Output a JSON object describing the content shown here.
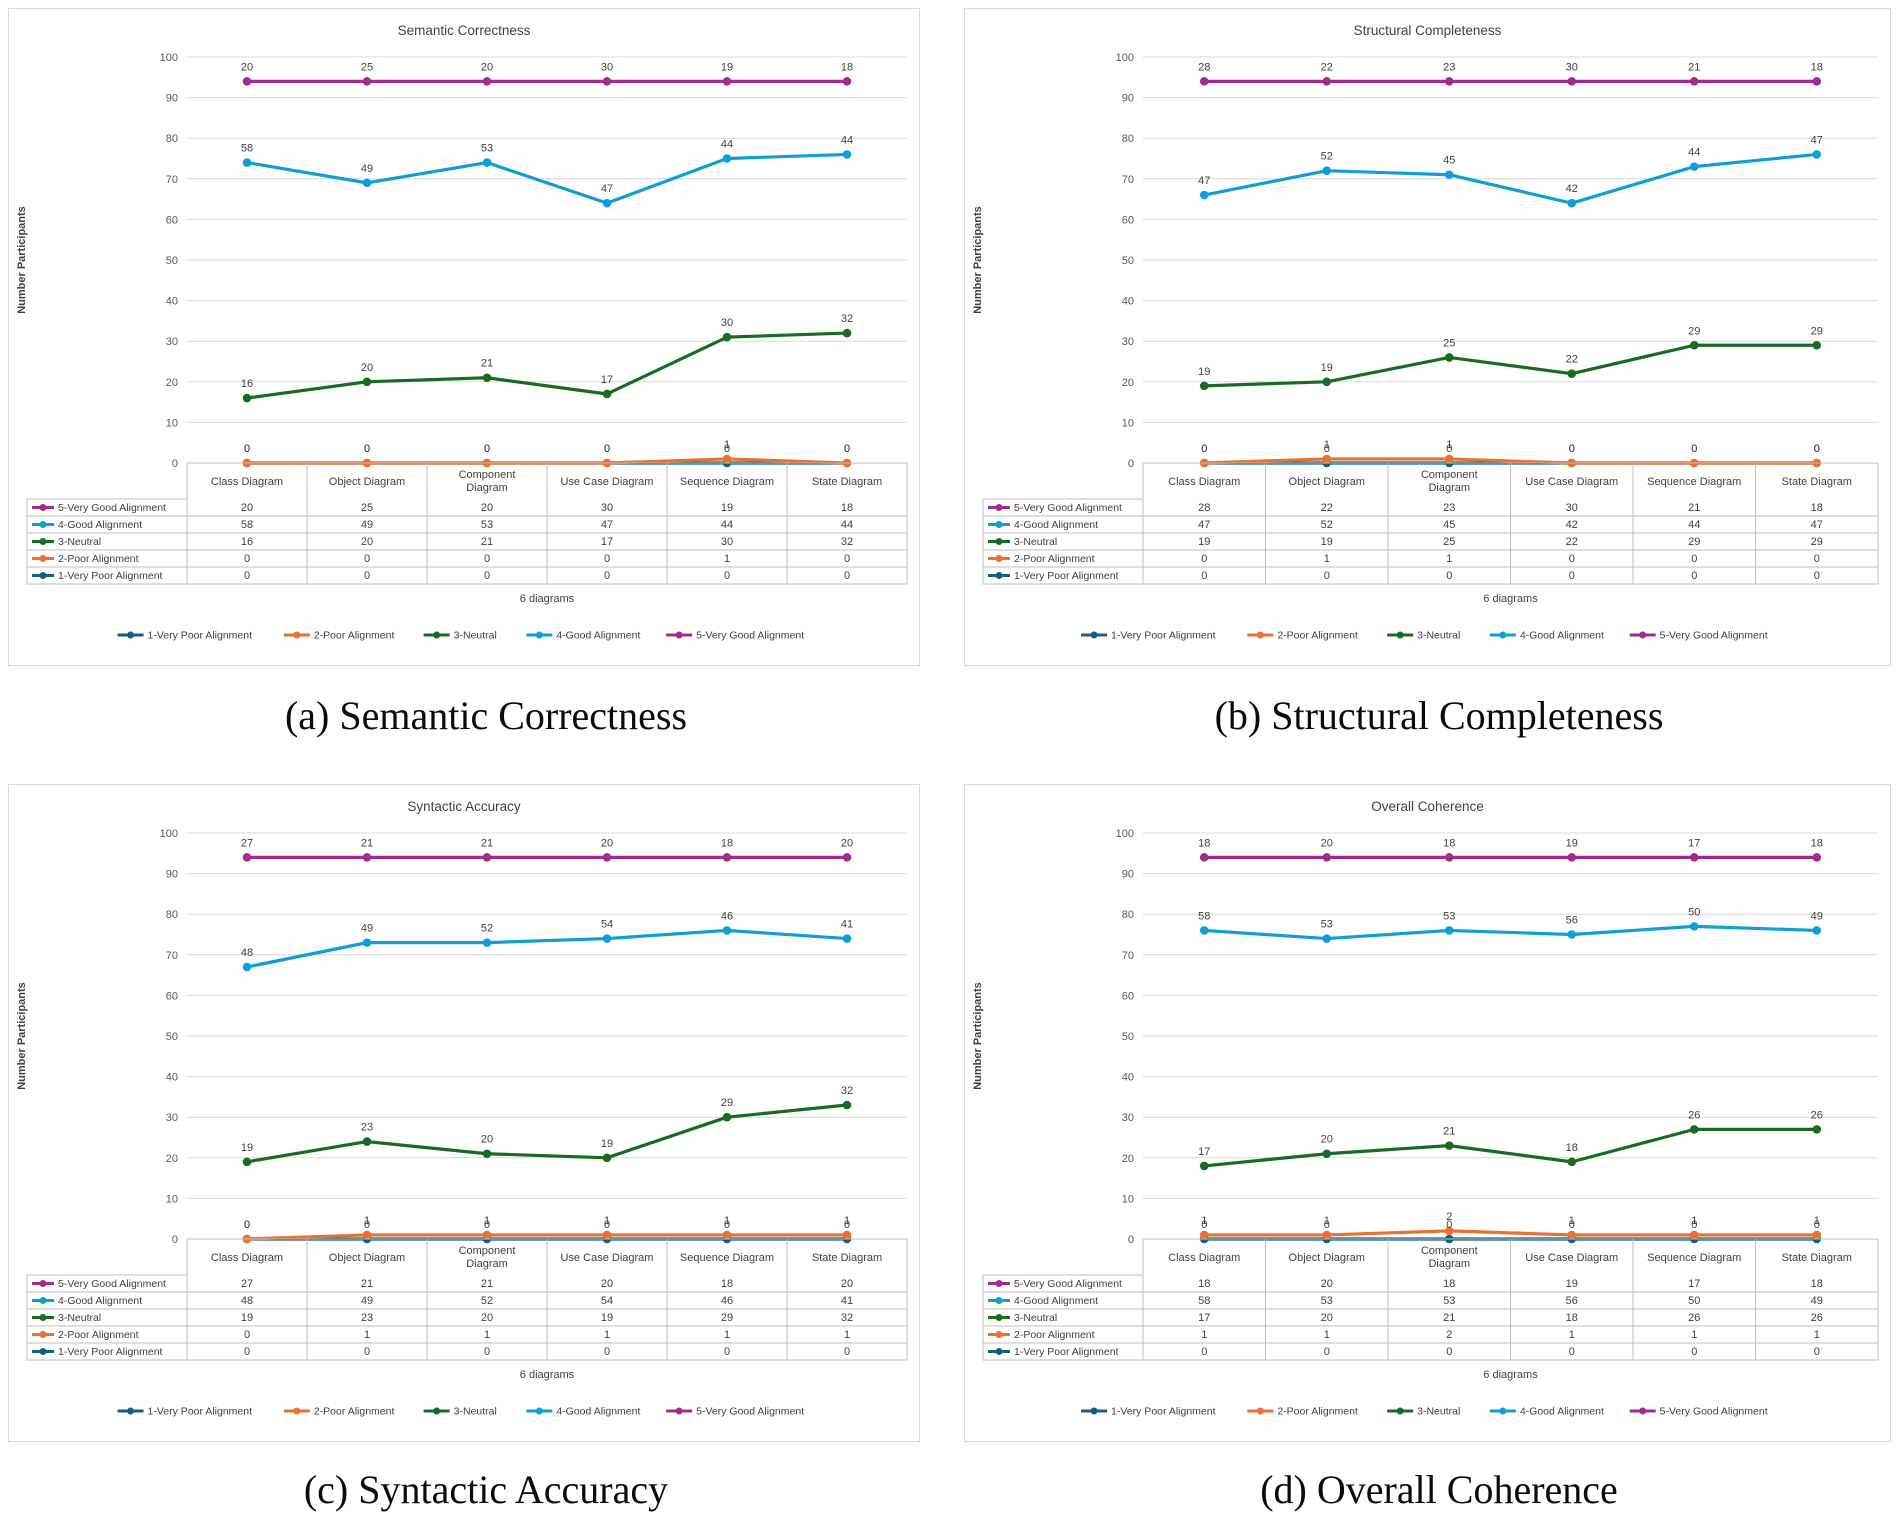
{
  "page": {
    "background": "#FFFFFF",
    "text_color": "#404040",
    "gridline_color": "#D9D9D9",
    "table_border_color": "#BFBFBF"
  },
  "chart_data": [
    {
      "type": "line",
      "stacked": true,
      "plot_note": "lines plotted as cumulative stack of the 5 series (total 94 participants); data labels and table show per-series counts",
      "title": "Semantic Correctness",
      "caption": "(a) Semantic Correctness",
      "xlabel": "6 diagrams",
      "ylabel": "Number Participants",
      "ylim": [
        0,
        100
      ],
      "ytick_step": 10,
      "y_ticks": [
        0,
        10,
        20,
        30,
        40,
        50,
        60,
        70,
        80,
        90,
        100
      ],
      "grid": true,
      "legend_position": "bottom",
      "data_table": true,
      "marker": "circle",
      "categories": [
        "Class Diagram",
        "Object Diagram",
        "Component Diagram",
        "Use Case Diagram",
        "Sequence Diagram",
        "State Diagram"
      ],
      "series": [
        {
          "name": "1-Very Poor Alignment",
          "color": "#156082",
          "values": [
            0,
            0,
            0,
            0,
            0,
            0
          ]
        },
        {
          "name": "2-Poor Alignment",
          "color": "#E97132",
          "values": [
            0,
            0,
            0,
            0,
            1,
            0
          ]
        },
        {
          "name": "3-Neutral",
          "color": "#196B24",
          "values": [
            16,
            20,
            21,
            17,
            30,
            32
          ]
        },
        {
          "name": "4-Good Alignment",
          "color": "#0F9ED5",
          "values": [
            58,
            49,
            53,
            47,
            44,
            44
          ]
        },
        {
          "name": "5-Very Good Alignment",
          "color": "#A02B93",
          "values": [
            20,
            25,
            20,
            30,
            19,
            18
          ]
        }
      ]
    },
    {
      "type": "line",
      "stacked": true,
      "plot_note": "lines plotted as cumulative stack of the 5 series (total 94 participants); data labels and table show per-series counts",
      "title": "Structural Completeness",
      "caption": "(b) Structural Completeness",
      "xlabel": "6 diagrams",
      "ylabel": "Number Participants",
      "ylim": [
        0,
        100
      ],
      "ytick_step": 10,
      "y_ticks": [
        0,
        10,
        20,
        30,
        40,
        50,
        60,
        70,
        80,
        90,
        100
      ],
      "grid": true,
      "legend_position": "bottom",
      "data_table": true,
      "marker": "circle",
      "categories": [
        "Class Diagram",
        "Object Diagram",
        "Component Diagram",
        "Use Case Diagram",
        "Sequence Diagram",
        "State Diagram"
      ],
      "series": [
        {
          "name": "1-Very Poor Alignment",
          "color": "#156082",
          "values": [
            0,
            0,
            0,
            0,
            0,
            0
          ]
        },
        {
          "name": "2-Poor Alignment",
          "color": "#E97132",
          "values": [
            0,
            1,
            1,
            0,
            0,
            0
          ]
        },
        {
          "name": "3-Neutral",
          "color": "#196B24",
          "values": [
            19,
            19,
            25,
            22,
            29,
            29
          ]
        },
        {
          "name": "4-Good Alignment",
          "color": "#0F9ED5",
          "values": [
            47,
            52,
            45,
            42,
            44,
            47
          ]
        },
        {
          "name": "5-Very Good Alignment",
          "color": "#A02B93",
          "values": [
            28,
            22,
            23,
            30,
            21,
            18
          ]
        }
      ]
    },
    {
      "type": "line",
      "stacked": true,
      "plot_note": "lines plotted as cumulative stack of the 5 series (total 94 participants); data labels and table show per-series counts",
      "title": "Syntactic Accuracy",
      "caption": "(c) Syntactic Accuracy",
      "xlabel": "6 diagrams",
      "ylabel": "Number  Participants",
      "ylim": [
        0,
        100
      ],
      "ytick_step": 10,
      "y_ticks": [
        0,
        10,
        20,
        30,
        40,
        50,
        60,
        70,
        80,
        90,
        100
      ],
      "grid": true,
      "legend_position": "bottom",
      "data_table": true,
      "marker": "circle",
      "categories": [
        "Class Diagram",
        "Object Diagram",
        "Component Diagram",
        "Use Case Diagram",
        "Sequence Diagram",
        "State Diagram"
      ],
      "series": [
        {
          "name": "1-Very Poor Alignment",
          "color": "#156082",
          "values": [
            0,
            0,
            0,
            0,
            0,
            0
          ]
        },
        {
          "name": "2-Poor Alignment",
          "color": "#E97132",
          "values": [
            0,
            1,
            1,
            1,
            1,
            1
          ]
        },
        {
          "name": "3-Neutral",
          "color": "#196B24",
          "values": [
            19,
            23,
            20,
            19,
            29,
            32
          ]
        },
        {
          "name": "4-Good Alignment",
          "color": "#0F9ED5",
          "values": [
            48,
            49,
            52,
            54,
            46,
            41
          ]
        },
        {
          "name": "5-Very Good Alignment",
          "color": "#A02B93",
          "values": [
            27,
            21,
            21,
            20,
            18,
            20
          ]
        }
      ]
    },
    {
      "type": "line",
      "stacked": true,
      "plot_note": "lines plotted as cumulative stack of the 5 series (total 94 participants); data labels and table show per-series counts",
      "title": "Overall Coherence",
      "caption": "(d) Overall Coherence",
      "xlabel": "6 diagrams",
      "ylabel": "Number Participants",
      "ylim": [
        0,
        100
      ],
      "ytick_step": 10,
      "y_ticks": [
        0,
        10,
        20,
        30,
        40,
        50,
        60,
        70,
        80,
        90,
        100
      ],
      "grid": true,
      "legend_position": "bottom",
      "data_table": true,
      "marker": "circle",
      "categories": [
        "Class Diagram",
        "Object Diagram",
        "Component Diagram",
        "Use Case Diagram",
        "Sequence Diagram",
        "State Diagram"
      ],
      "series": [
        {
          "name": "1-Very Poor Alignment",
          "color": "#156082",
          "values": [
            0,
            0,
            0,
            0,
            0,
            0
          ]
        },
        {
          "name": "2-Poor Alignment",
          "color": "#E97132",
          "values": [
            1,
            1,
            2,
            1,
            1,
            1
          ]
        },
        {
          "name": "3-Neutral",
          "color": "#196B24",
          "values": [
            17,
            20,
            21,
            18,
            26,
            26
          ]
        },
        {
          "name": "4-Good Alignment",
          "color": "#0F9ED5",
          "values": [
            58,
            53,
            53,
            56,
            50,
            49
          ]
        },
        {
          "name": "5-Very Good Alignment",
          "color": "#A02B93",
          "values": [
            18,
            20,
            18,
            19,
            17,
            18
          ]
        }
      ]
    }
  ]
}
